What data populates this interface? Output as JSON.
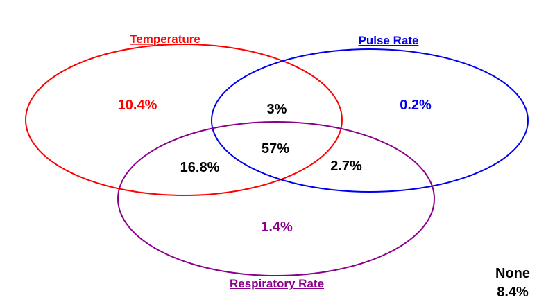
{
  "colors": {
    "temperature": "#ff0000",
    "pulse_rate": "#0000ee",
    "respiratory_rate": "#8b008b",
    "intersection_text": "#000000"
  },
  "sets": {
    "temperature": {
      "label": "Temperature"
    },
    "pulse_rate": {
      "label": "Pulse Rate"
    },
    "respiratory_rate": {
      "label": "Respiratory Rate"
    }
  },
  "regions": {
    "temperature_only": "10.4%",
    "pulse_rate_only": "0.2%",
    "respiratory_rate_only": "1.4%",
    "temperature_pulse": "3%",
    "temperature_respiratory": "16.8%",
    "pulse_respiratory": "2.7%",
    "all_three": "57%"
  },
  "none": {
    "label": "None",
    "value": "8.4%"
  }
}
